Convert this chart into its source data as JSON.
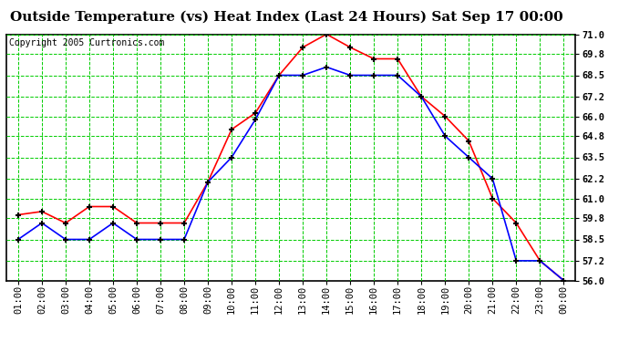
{
  "title": "Outside Temperature (vs) Heat Index (Last 24 Hours) Sat Sep 17 00:00",
  "copyright": "Copyright 2005 Curtronics.com",
  "x_labels": [
    "01:00",
    "02:00",
    "03:00",
    "04:00",
    "05:00",
    "06:00",
    "07:00",
    "08:00",
    "09:00",
    "10:00",
    "11:00",
    "12:00",
    "13:00",
    "14:00",
    "15:00",
    "16:00",
    "17:00",
    "18:00",
    "19:00",
    "20:00",
    "21:00",
    "22:00",
    "23:00",
    "00:00"
  ],
  "red_data": [
    60.0,
    60.2,
    59.5,
    60.5,
    60.5,
    59.5,
    59.5,
    59.5,
    62.0,
    65.2,
    66.2,
    68.5,
    70.2,
    71.0,
    70.2,
    69.5,
    69.5,
    67.2,
    66.0,
    64.5,
    61.0,
    59.5,
    57.2,
    56.0
  ],
  "blue_data": [
    58.5,
    59.5,
    58.5,
    58.5,
    59.5,
    58.5,
    58.5,
    58.5,
    62.0,
    63.5,
    65.8,
    68.5,
    68.5,
    69.0,
    68.5,
    68.5,
    68.5,
    67.2,
    64.8,
    63.5,
    62.2,
    57.2,
    57.2,
    56.0
  ],
  "red_color": "#ff0000",
  "blue_color": "#0000ff",
  "bg_color": "#ffffff",
  "plot_bg_color": "#ffffff",
  "grid_major_color": "#00cc00",
  "grid_minor_color": "#00cc00",
  "border_color": "#000000",
  "ylim": [
    56.0,
    71.0
  ],
  "yticks": [
    56.0,
    57.2,
    58.5,
    59.8,
    61.0,
    62.2,
    63.5,
    64.8,
    66.0,
    67.2,
    68.5,
    69.8,
    71.0
  ],
  "title_fontsize": 11,
  "copyright_fontsize": 7,
  "tick_fontsize": 7.5
}
